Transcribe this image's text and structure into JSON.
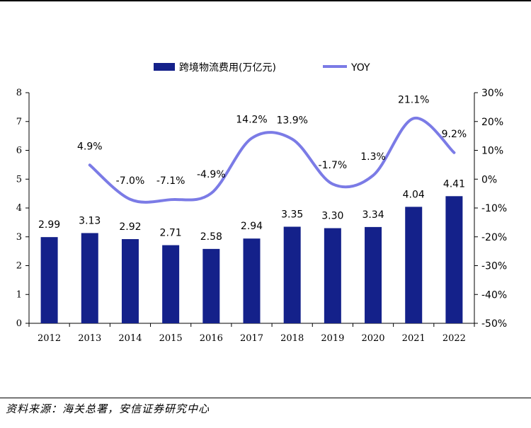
{
  "chart_data": {
    "type": "bar",
    "categories": [
      "2012",
      "2013",
      "2014",
      "2015",
      "2016",
      "2017",
      "2018",
      "2019",
      "2020",
      "2021",
      "2022"
    ],
    "series": [
      {
        "name": "跨境物流费用(万亿元)",
        "type": "bar",
        "axis": "left",
        "color": "#14218a",
        "values": [
          2.99,
          3.13,
          2.92,
          2.71,
          2.58,
          2.94,
          3.35,
          3.3,
          3.34,
          4.04,
          4.41
        ],
        "labels": [
          "2.99",
          "3.13",
          "2.92",
          "2.71",
          "2.58",
          "2.94",
          "3.35",
          "3.30",
          "3.34",
          "4.04",
          "4.41"
        ]
      },
      {
        "name": "YOY",
        "type": "line",
        "axis": "right",
        "smooth": true,
        "color": "#7b7be6",
        "values": [
          null,
          4.9,
          -7.0,
          -7.1,
          -4.9,
          14.2,
          13.9,
          -1.7,
          1.3,
          21.1,
          9.2
        ],
        "labels": [
          null,
          "4.9%",
          "-7.0%",
          "-7.1%",
          "-4.9%",
          "14.2%",
          "13.9%",
          "-1.7%",
          "1.3%",
          "21.1%",
          "9.2%"
        ]
      }
    ],
    "y_left": {
      "min": 0,
      "max": 8,
      "ticks": [
        "0",
        "1",
        "2",
        "3",
        "4",
        "5",
        "6",
        "7",
        "8"
      ]
    },
    "y_right": {
      "min": -50,
      "max": 30,
      "ticks": [
        "-50%",
        "-40%",
        "-30%",
        "-20%",
        "-10%",
        "0%",
        "10%",
        "20%",
        "30%"
      ]
    },
    "legend_position": "top-center",
    "grid": false
  },
  "source_note": "资料来源：海关总署，安信证券研究中心"
}
